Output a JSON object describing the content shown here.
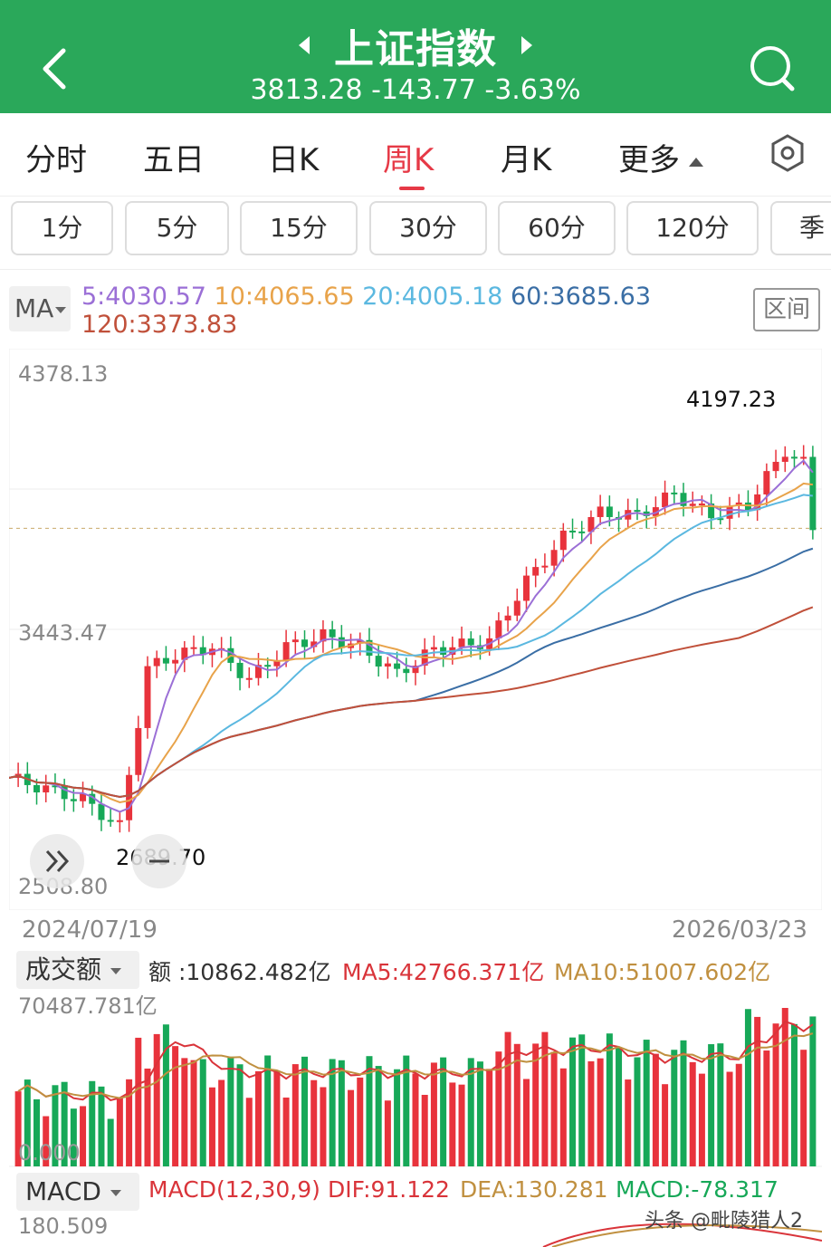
{
  "header": {
    "title": "上证指数",
    "quote": "3813.28 -143.77 -3.63%"
  },
  "tabs": [
    {
      "label": "分时"
    },
    {
      "label": "五日"
    },
    {
      "label": "日K"
    },
    {
      "label": "周K",
      "active": true
    },
    {
      "label": "月K"
    },
    {
      "label": "更多"
    }
  ],
  "periods": [
    "1分",
    "5分",
    "15分",
    "30分",
    "60分",
    "120分",
    "季"
  ],
  "ma": {
    "selector": "MA",
    "ma5": "5:4030.57",
    "ma10": "10:4065.65",
    "ma20": "20:4005.18",
    "ma60": "60:3685.63",
    "ma120": "120:3373.83",
    "range_button": "区间",
    "colors": {
      "ma5": "#9b6fd6",
      "ma10": "#e8a34a",
      "ma20": "#5bb8e0",
      "ma60": "#3a6ea5",
      "ma120": "#c0503a"
    }
  },
  "price_axis": {
    "top": "4378.13",
    "mid": "3443.47",
    "bottom": "2508.80"
  },
  "annotations": {
    "high": "4197.23",
    "low": "2689.70"
  },
  "dates": {
    "start": "2024/07/19",
    "end": "2026/03/23"
  },
  "volume": {
    "selector": "成交额",
    "amount": "额 :10862.482亿",
    "ma5": "MA5:42766.371亿",
    "ma10": "MA10:51007.602亿",
    "max": "70487.781亿",
    "min": "0.000"
  },
  "macd": {
    "selector": "MACD",
    "params": "MACD(12,30,9)",
    "dif": "DIF:91.122",
    "dea": "DEA:130.281",
    "macd": "MACD:-78.317",
    "max": "180.509"
  },
  "watermark": "头条 @毗陵猎人2",
  "colors": {
    "up": "#e8333c",
    "down": "#17a858",
    "header": "#2aa85a"
  },
  "chart_data": {
    "type": "candlestick",
    "x_range": [
      "2024/07/19",
      "2026/03/23"
    ],
    "y_range": [
      2508.8,
      4378.13
    ],
    "high": 4197.23,
    "low": 2689.7,
    "close": 3813.28,
    "weeks": 87
  }
}
